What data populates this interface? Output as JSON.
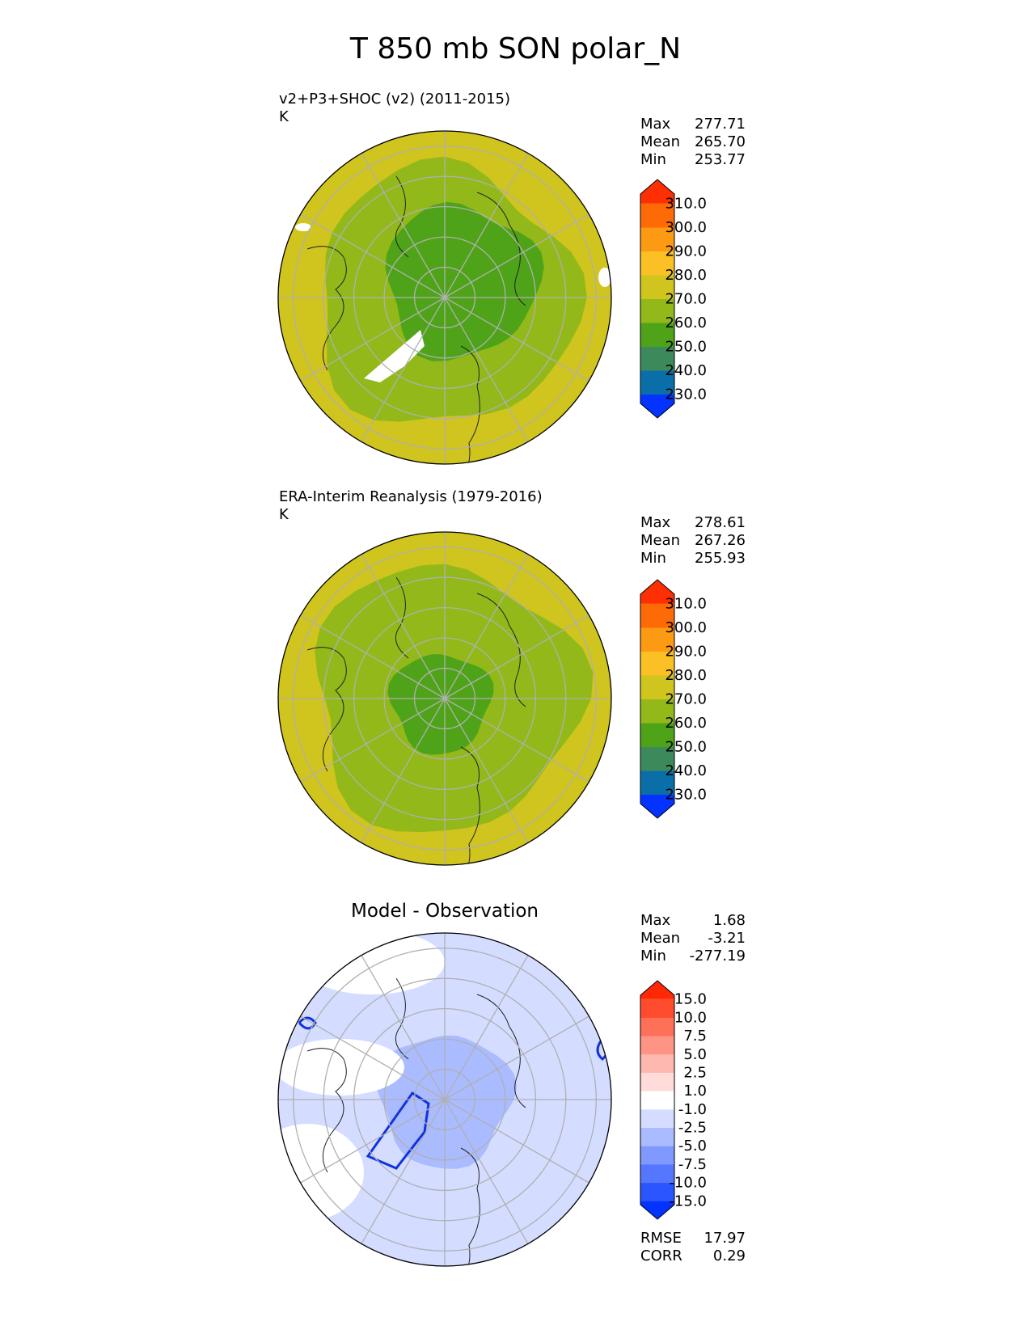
{
  "title": "T 850 mb SON polar_N",
  "chart_data": [
    {
      "type": "heatmap",
      "title": "v2+P3+SHOC (v2) (2011-2015)",
      "units": "K",
      "stats": [
        {
          "label": "Max",
          "value": "277.71"
        },
        {
          "label": "Mean",
          "value": "265.70"
        },
        {
          "label": "Min",
          "value": "253.77"
        }
      ],
      "colorbar": {
        "levels": [
          "230.0",
          "240.0",
          "250.0",
          "260.0",
          "270.0",
          "280.0",
          "290.0",
          "300.0",
          "310.0"
        ],
        "colors": [
          "#0433ff",
          "#0a6fa8",
          "#3c8a5c",
          "#4ea318",
          "#92b81a",
          "#d0c41e",
          "#fbc124",
          "#fc9a14",
          "#fd6a06",
          "#fe2f02"
        ]
      },
      "rings": [
        {
          "radius": 1.0,
          "color": "#d0c41e"
        },
        {
          "radius": 0.78,
          "color": "#92b81a"
        },
        {
          "radius": 0.46,
          "color": "#4ea318"
        }
      ],
      "missing_patches": true
    },
    {
      "type": "heatmap",
      "title": "ERA-Interim Reanalysis (1979-2016)",
      "units": "K",
      "stats": [
        {
          "label": "Max",
          "value": "278.61"
        },
        {
          "label": "Mean",
          "value": "267.26"
        },
        {
          "label": "Min",
          "value": "255.93"
        }
      ],
      "colorbar": {
        "levels": [
          "230.0",
          "240.0",
          "250.0",
          "260.0",
          "270.0",
          "280.0",
          "290.0",
          "300.0",
          "310.0"
        ],
        "colors": [
          "#0433ff",
          "#0a6fa8",
          "#3c8a5c",
          "#4ea318",
          "#92b81a",
          "#d0c41e",
          "#fbc124",
          "#fc9a14",
          "#fd6a06",
          "#fe2f02"
        ]
      },
      "rings": [
        {
          "radius": 1.0,
          "color": "#d0c41e"
        },
        {
          "radius": 0.8,
          "color": "#92b81a"
        },
        {
          "radius": 0.3,
          "color": "#4ea318"
        }
      ],
      "missing_patches": false
    },
    {
      "type": "heatmap",
      "title": "Model - Observation",
      "units": "",
      "stats": [
        {
          "label": "Max",
          "value": "1.68"
        },
        {
          "label": "Mean",
          "value": "-3.21"
        },
        {
          "label": "Min",
          "value": "-277.19"
        }
      ],
      "colorbar": {
        "levels": [
          "-15.0",
          "-10.0",
          "-7.5",
          "-5.0",
          "-2.5",
          "-1.0",
          "1.0",
          "2.5",
          "5.0",
          "7.5",
          "10.0",
          "15.0"
        ],
        "colors": [
          "#0433ff",
          "#2a55ff",
          "#5577ff",
          "#7f99ff",
          "#aabbff",
          "#d4ddff",
          "#ffffff",
          "#ffdcd9",
          "#ffb8b0",
          "#ff9484",
          "#ff7059",
          "#ff4c2f",
          "#ff2805"
        ]
      },
      "metrics": [
        {
          "label": "RMSE",
          "value": "17.97"
        },
        {
          "label": "CORR",
          "value": "0.29"
        }
      ],
      "rings": [
        {
          "radius": 1.0,
          "color": "#d4ddff"
        },
        {
          "radius": 0.4,
          "color": "#aabbff"
        }
      ],
      "missing_patches": false
    }
  ]
}
